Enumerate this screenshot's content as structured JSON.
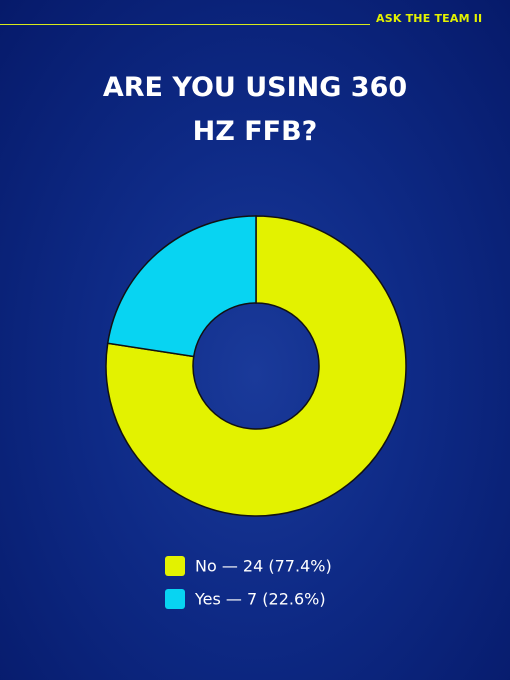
{
  "header": "ASK THE TEAM II",
  "chart_data": {
    "type": "donut",
    "title": "ARE YOU USING 360 HZ FFB?",
    "categories": [
      "No — 24 (77.4%)",
      "Yes — 7 (22.6%)"
    ],
    "values": [
      24,
      7
    ],
    "colors": [
      "#e3f200",
      "#08d4f2"
    ]
  }
}
